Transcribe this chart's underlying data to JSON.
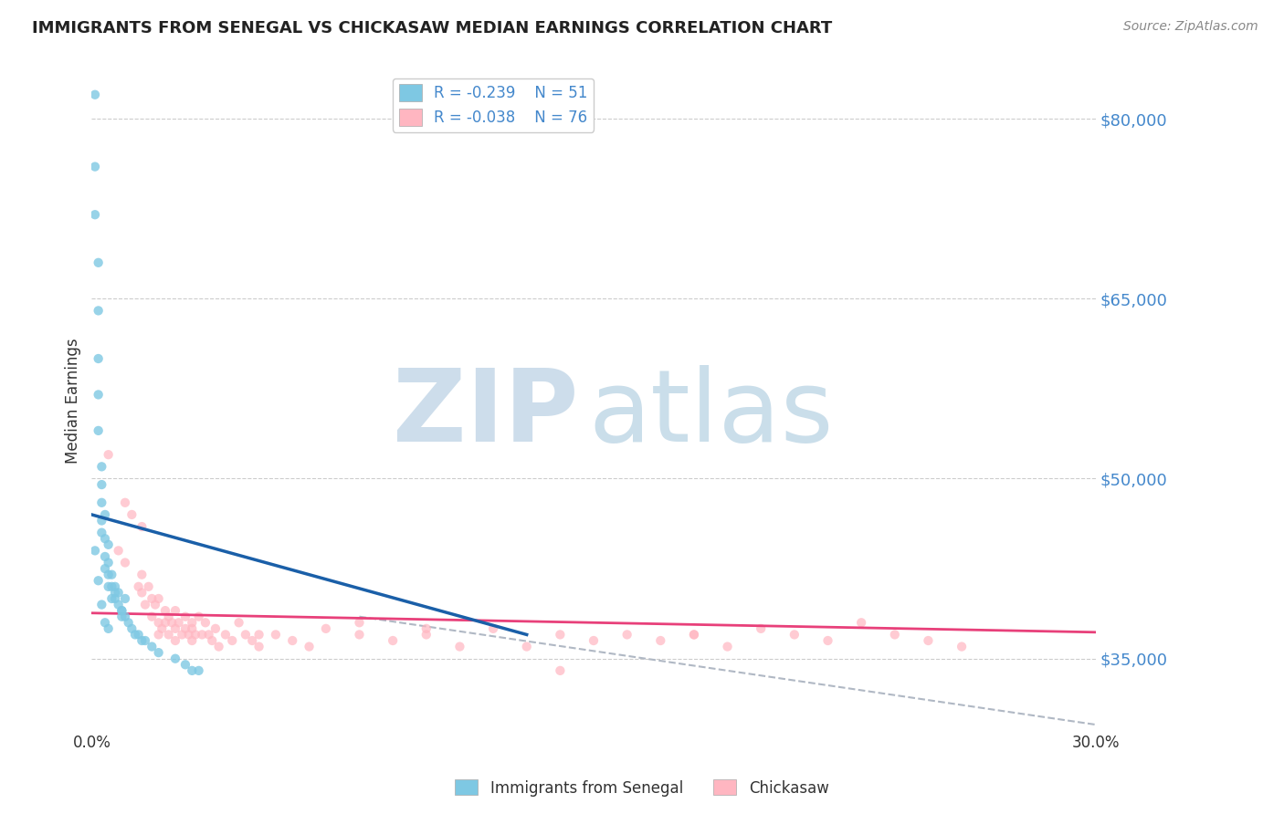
{
  "title": "IMMIGRANTS FROM SENEGAL VS CHICKASAW MEDIAN EARNINGS CORRELATION CHART",
  "source_text": "Source: ZipAtlas.com",
  "ylabel": "Median Earnings",
  "xlim": [
    0.0,
    0.3
  ],
  "ylim": [
    29000,
    84000
  ],
  "yticks": [
    35000,
    50000,
    65000,
    80000
  ],
  "ytick_labels": [
    "$35,000",
    "$50,000",
    "$65,000",
    "$80,000"
  ],
  "xticks": [
    0.0,
    0.05,
    0.1,
    0.15,
    0.2,
    0.25,
    0.3
  ],
  "xtick_labels": [
    "0.0%",
    "",
    "",
    "",
    "",
    "",
    "30.0%"
  ],
  "background_color": "#ffffff",
  "grid_color": "#cccccc",
  "legend_R1": "R = -0.239",
  "legend_N1": "N = 51",
  "legend_R2": "R = -0.038",
  "legend_N2": "N = 76",
  "blue_color": "#7ec8e3",
  "pink_color": "#ffb6c1",
  "blue_line_color": "#1a5fa8",
  "pink_line_color": "#e8407a",
  "dot_size": 55,
  "blue_x": [
    0.001,
    0.001,
    0.001,
    0.002,
    0.002,
    0.002,
    0.002,
    0.002,
    0.003,
    0.003,
    0.003,
    0.003,
    0.003,
    0.004,
    0.004,
    0.004,
    0.004,
    0.005,
    0.005,
    0.005,
    0.005,
    0.006,
    0.006,
    0.006,
    0.007,
    0.007,
    0.008,
    0.008,
    0.009,
    0.009,
    0.01,
    0.01,
    0.011,
    0.012,
    0.013,
    0.014,
    0.015,
    0.016,
    0.018,
    0.02,
    0.025,
    0.028,
    0.03,
    0.032,
    0.001,
    0.002,
    0.003,
    0.004,
    0.005,
    0.007,
    0.009
  ],
  "blue_y": [
    82000,
    76000,
    72000,
    68000,
    64000,
    60000,
    57000,
    54000,
    51000,
    49500,
    48000,
    46500,
    45500,
    47000,
    45000,
    43500,
    42500,
    44500,
    43000,
    42000,
    41000,
    42000,
    41000,
    40000,
    41000,
    40000,
    40500,
    39500,
    39000,
    38500,
    40000,
    38500,
    38000,
    37500,
    37000,
    37000,
    36500,
    36500,
    36000,
    35500,
    35000,
    34500,
    34000,
    34000,
    44000,
    41500,
    39500,
    38000,
    37500,
    40500,
    39000
  ],
  "pink_x": [
    0.005,
    0.008,
    0.01,
    0.012,
    0.014,
    0.015,
    0.015,
    0.016,
    0.017,
    0.018,
    0.018,
    0.019,
    0.02,
    0.02,
    0.021,
    0.022,
    0.022,
    0.023,
    0.023,
    0.024,
    0.025,
    0.025,
    0.026,
    0.027,
    0.028,
    0.028,
    0.029,
    0.03,
    0.03,
    0.031,
    0.032,
    0.033,
    0.034,
    0.035,
    0.036,
    0.037,
    0.038,
    0.04,
    0.042,
    0.044,
    0.046,
    0.048,
    0.05,
    0.055,
    0.06,
    0.065,
    0.07,
    0.08,
    0.09,
    0.1,
    0.11,
    0.12,
    0.13,
    0.14,
    0.15,
    0.16,
    0.17,
    0.18,
    0.19,
    0.2,
    0.21,
    0.22,
    0.23,
    0.24,
    0.25,
    0.01,
    0.015,
    0.02,
    0.025,
    0.03,
    0.05,
    0.08,
    0.1,
    0.14,
    0.18,
    0.26
  ],
  "pink_y": [
    52000,
    44000,
    43000,
    47000,
    41000,
    40500,
    42000,
    39500,
    41000,
    40000,
    38500,
    39500,
    38000,
    40000,
    37500,
    39000,
    38000,
    38500,
    37000,
    38000,
    37500,
    39000,
    38000,
    37000,
    37500,
    38500,
    37000,
    38000,
    36500,
    37000,
    38500,
    37000,
    38000,
    37000,
    36500,
    37500,
    36000,
    37000,
    36500,
    38000,
    37000,
    36500,
    36000,
    37000,
    36500,
    36000,
    37500,
    37000,
    36500,
    37000,
    36000,
    37500,
    36000,
    37000,
    36500,
    37000,
    36500,
    37000,
    36000,
    37500,
    37000,
    36500,
    38000,
    37000,
    36500,
    48000,
    46000,
    37000,
    36500,
    37500,
    37000,
    38000,
    37500,
    34000,
    37000,
    36000
  ],
  "blue_trend_x": [
    0.0,
    0.13
  ],
  "blue_trend_y": [
    47000,
    37000
  ],
  "pink_trend_x": [
    0.0,
    0.3
  ],
  "pink_trend_y": [
    38800,
    37200
  ],
  "gray_trend_x": [
    0.08,
    0.3
  ],
  "gray_trend_y": [
    38500,
    29500
  ]
}
